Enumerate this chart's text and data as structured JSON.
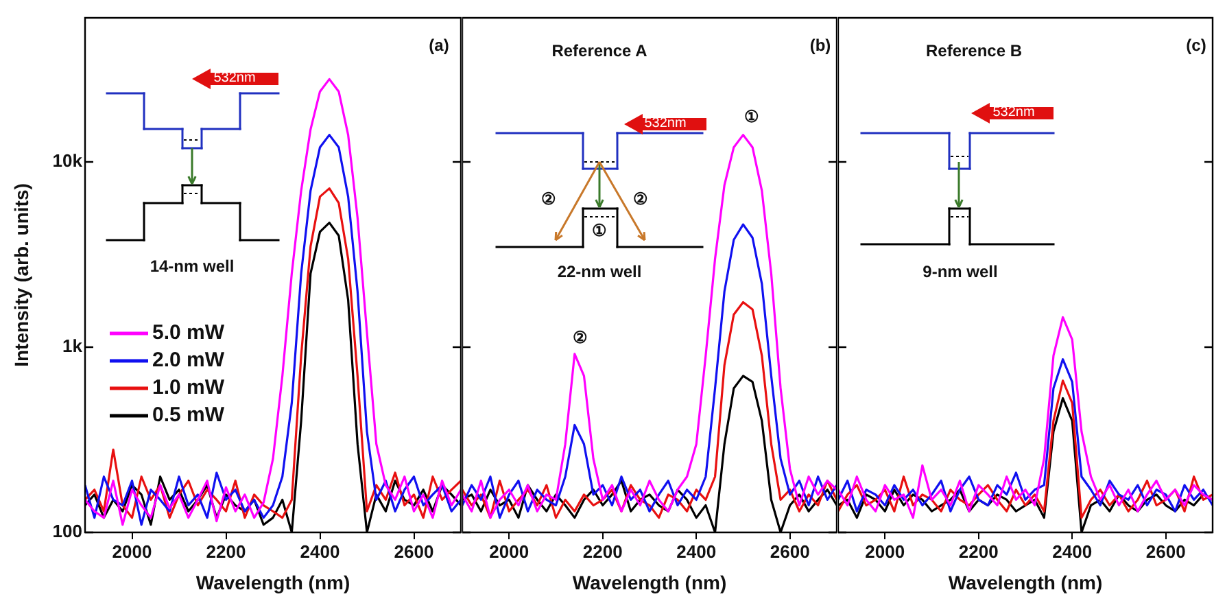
{
  "chart_data": [
    {
      "type": "line",
      "xlabel": "Wavelength (nm)",
      "ylabel": "Intensity (arb. units)",
      "log": true,
      "marker": "none",
      "legend": "left",
      "grid": false,
      "xlim": [
        1900,
        2700
      ],
      "xticks": [
        2000,
        2200,
        2400,
        2600
      ],
      "ylim": [
        100,
        60000
      ],
      "yticks": [
        {
          "value": 100,
          "label": "100"
        },
        {
          "value": 1000,
          "label": "1k"
        },
        {
          "value": 10000,
          "label": "10k"
        }
      ],
      "x": [
        1900,
        1920,
        1940,
        1960,
        1980,
        2000,
        2020,
        2040,
        2060,
        2080,
        2100,
        2120,
        2140,
        2160,
        2180,
        2200,
        2220,
        2240,
        2260,
        2280,
        2300,
        2320,
        2340,
        2360,
        2380,
        2400,
        2420,
        2440,
        2460,
        2480,
        2500,
        2520,
        2540,
        2560,
        2580,
        2600,
        2620,
        2640,
        2660,
        2680,
        2700
      ],
      "series": [
        {
          "name": "5.0 mW",
          "color": "#ff00ff",
          "values": [
            150,
            130,
            120,
            190,
            110,
            170,
            140,
            120,
            180,
            135,
            160,
            120,
            150,
            190,
            115,
            175,
            130,
            160,
            120,
            145,
            250,
            700,
            2500,
            7000,
            15000,
            24000,
            28000,
            24000,
            14000,
            5000,
            1200,
            300,
            180,
            150,
            200,
            130,
            160,
            120,
            190,
            140,
            170
          ]
        },
        {
          "name": "2.0 mW",
          "color": "#1010f0",
          "values": [
            180,
            120,
            200,
            150,
            140,
            190,
            110,
            170,
            150,
            130,
            200,
            140,
            160,
            120,
            210,
            150,
            170,
            130,
            150,
            120,
            140,
            200,
            500,
            2500,
            7000,
            12000,
            14000,
            12000,
            6500,
            2000,
            350,
            150,
            190,
            130,
            170,
            200,
            140,
            160,
            180,
            130,
            150
          ]
        },
        {
          "name": "1.0 mW",
          "color": "#e81010",
          "values": [
            150,
            170,
            130,
            280,
            140,
            120,
            200,
            150,
            180,
            120,
            160,
            190,
            140,
            170,
            150,
            130,
            190,
            120,
            160,
            140,
            130,
            120,
            150,
            900,
            3500,
            6500,
            7200,
            6000,
            3000,
            700,
            130,
            180,
            150,
            210,
            140,
            160,
            120,
            200,
            150,
            170,
            190
          ]
        },
        {
          "name": "0.5 mW",
          "color": "#000000",
          "values": [
            140,
            160,
            120,
            150,
            130,
            180,
            160,
            110,
            200,
            150,
            170,
            130,
            150,
            180,
            120,
            160,
            140,
            130,
            150,
            110,
            120,
            150,
            100,
            400,
            2500,
            4200,
            4700,
            4000,
            1800,
            300,
            100,
            160,
            130,
            190,
            150,
            140,
            170,
            130,
            180,
            160,
            140
          ]
        }
      ],
      "annotations": [
        "(a)",
        "532nm",
        "14-nm well"
      ]
    },
    {
      "type": "line",
      "xlabel": "Wavelength (nm)",
      "log": true,
      "marker": "none",
      "grid": false,
      "tick_labels": "x",
      "xlim": [
        1900,
        2700
      ],
      "xticks": [
        2000,
        2200,
        2400,
        2600
      ],
      "ylim": [
        100,
        60000
      ],
      "yticks": [
        100,
        1000,
        10000
      ],
      "x": [
        1900,
        1920,
        1940,
        1960,
        1980,
        2000,
        2020,
        2040,
        2060,
        2080,
        2100,
        2120,
        2140,
        2160,
        2180,
        2200,
        2220,
        2240,
        2260,
        2280,
        2300,
        2320,
        2340,
        2360,
        2380,
        2400,
        2420,
        2440,
        2460,
        2480,
        2500,
        2520,
        2540,
        2560,
        2580,
        2600,
        2620,
        2640,
        2660,
        2680,
        2700
      ],
      "series": [
        {
          "color": "#ff00ff",
          "values": [
            160,
            130,
            190,
            120,
            150,
            170,
            140,
            180,
            130,
            160,
            150,
            300,
            920,
            700,
            250,
            150,
            180,
            130,
            170,
            140,
            190,
            150,
            130,
            170,
            200,
            300,
            900,
            3000,
            7500,
            12000,
            14000,
            12000,
            7000,
            2500,
            600,
            220,
            140,
            200,
            160,
            190,
            170
          ]
        },
        {
          "color": "#1010f0",
          "values": [
            140,
            180,
            150,
            200,
            120,
            160,
            190,
            130,
            170,
            150,
            140,
            200,
            380,
            300,
            160,
            180,
            140,
            200,
            150,
            170,
            130,
            160,
            190,
            140,
            170,
            150,
            200,
            600,
            2000,
            3800,
            4600,
            3900,
            2200,
            700,
            250,
            160,
            190,
            140,
            200,
            150,
            180
          ]
        },
        {
          "color": "#e81010",
          "values": [
            170,
            140,
            160,
            120,
            190,
            130,
            150,
            170,
            140,
            180,
            120,
            150,
            130,
            160,
            140,
            150,
            170,
            130,
            180,
            150,
            140,
            120,
            160,
            150,
            130,
            170,
            150,
            200,
            800,
            1500,
            1750,
            1600,
            900,
            300,
            150,
            170,
            130,
            160,
            140,
            190,
            150
          ]
        },
        {
          "color": "#000000",
          "values": [
            150,
            160,
            130,
            170,
            140,
            150,
            120,
            180,
            150,
            130,
            160,
            140,
            120,
            150,
            170,
            140,
            160,
            190,
            130,
            150,
            160,
            140,
            130,
            170,
            150,
            120,
            140,
            100,
            300,
            600,
            700,
            650,
            400,
            150,
            100,
            140,
            160,
            130,
            150,
            170,
            140
          ]
        }
      ],
      "annotations": [
        "Reference A",
        "(b)",
        "532nm",
        "②",
        "②",
        "①",
        "22-nm well",
        "①",
        "②"
      ]
    },
    {
      "type": "line",
      "xlabel": "Wavelength (nm)",
      "log": true,
      "marker": "none",
      "grid": false,
      "tick_labels": "x",
      "xlim": [
        1900,
        2700
      ],
      "xticks": [
        2000,
        2200,
        2400,
        2600
      ],
      "ylim": [
        100,
        60000
      ],
      "yticks": [
        100,
        1000,
        10000
      ],
      "x": [
        1900,
        1920,
        1940,
        1960,
        1980,
        2000,
        2020,
        2040,
        2060,
        2080,
        2100,
        2120,
        2140,
        2160,
        2180,
        2200,
        2220,
        2240,
        2260,
        2280,
        2300,
        2320,
        2340,
        2360,
        2380,
        2400,
        2420,
        2440,
        2460,
        2480,
        2500,
        2520,
        2540,
        2560,
        2580,
        2600,
        2620,
        2640,
        2660,
        2680,
        2700
      ],
      "series": [
        {
          "color": "#ff00ff",
          "values": [
            170,
            140,
            200,
            150,
            130,
            180,
            150,
            160,
            120,
            230,
            150,
            170,
            140,
            190,
            130,
            180,
            160,
            140,
            200,
            150,
            170,
            140,
            250,
            900,
            1450,
            1100,
            350,
            200,
            150,
            180,
            140,
            170,
            130,
            160,
            190,
            150,
            170,
            140,
            180,
            160,
            150
          ]
        },
        {
          "color": "#1010f0",
          "values": [
            150,
            190,
            130,
            170,
            160,
            140,
            180,
            150,
            170,
            140,
            160,
            190,
            130,
            170,
            200,
            150,
            140,
            180,
            160,
            210,
            150,
            170,
            180,
            600,
            860,
            650,
            200,
            170,
            140,
            190,
            160,
            150,
            180,
            140,
            170,
            160,
            130,
            180,
            150,
            170,
            140
          ]
        },
        {
          "color": "#e81010",
          "values": [
            130,
            160,
            180,
            140,
            150,
            170,
            130,
            200,
            140,
            160,
            150,
            130,
            170,
            150,
            140,
            160,
            180,
            150,
            130,
            170,
            140,
            160,
            130,
            400,
            660,
            500,
            120,
            150,
            170,
            140,
            160,
            130,
            150,
            190,
            140,
            150,
            170,
            130,
            200,
            150,
            160
          ]
        },
        {
          "color": "#000000",
          "values": [
            140,
            150,
            120,
            160,
            150,
            130,
            170,
            140,
            160,
            150,
            130,
            140,
            150,
            170,
            130,
            150,
            140,
            160,
            150,
            130,
            140,
            150,
            120,
            350,
            530,
            400,
            100,
            140,
            150,
            130,
            160,
            140,
            130,
            150,
            160,
            140,
            130,
            150,
            140,
            160,
            150
          ]
        }
      ],
      "annotations": [
        "Reference B",
        "(c)",
        "532nm",
        "9-nm well"
      ]
    }
  ]
}
